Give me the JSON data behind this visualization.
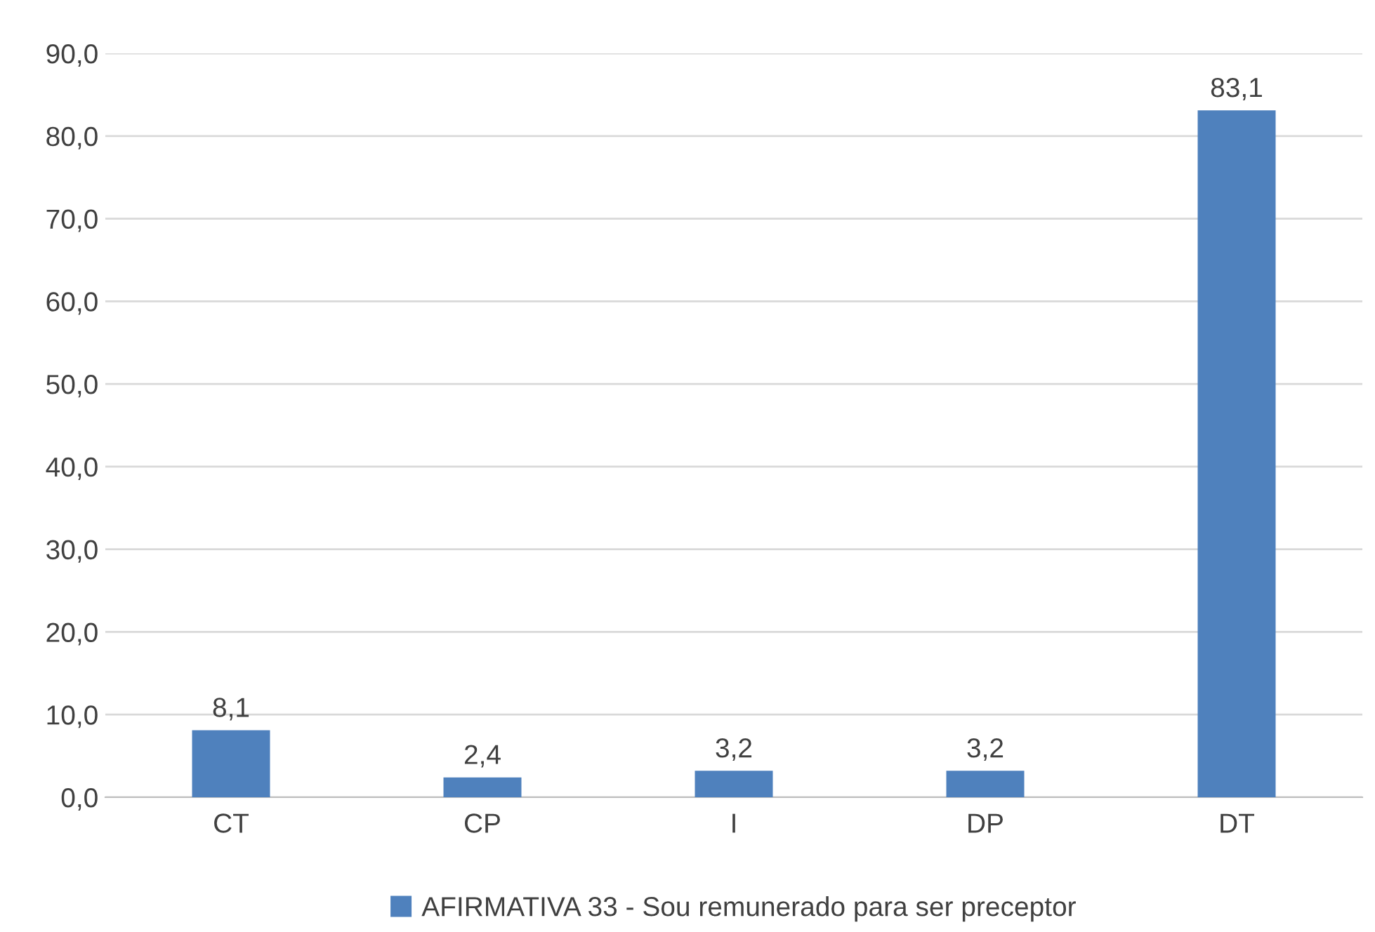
{
  "chart_data": {
    "type": "bar",
    "categories": [
      "CT",
      "CP",
      "I",
      "DP",
      "DT"
    ],
    "series": [
      {
        "name": "AFIRMATIVA 33 - Sou remunerado para ser preceptor",
        "color": "#4f81bd",
        "values": [
          8.1,
          2.4,
          3.2,
          3.2,
          83.1
        ],
        "value_labels": [
          "8,1",
          "2,4",
          "3,2",
          "3,2",
          "83,1"
        ]
      }
    ],
    "ylim": [
      0,
      90
    ],
    "yticks": [
      {
        "value": 0,
        "label": "0,0"
      },
      {
        "value": 10,
        "label": "10,0"
      },
      {
        "value": 20,
        "label": "20,0"
      },
      {
        "value": 30,
        "label": "30,0"
      },
      {
        "value": 40,
        "label": "40,0"
      },
      {
        "value": 50,
        "label": "50,0"
      },
      {
        "value": 60,
        "label": "60,0"
      },
      {
        "value": 70,
        "label": "70,0"
      },
      {
        "value": 80,
        "label": "80,0"
      },
      {
        "value": 90,
        "label": "90,0"
      }
    ],
    "grid": "y",
    "legend": "bottom"
  }
}
